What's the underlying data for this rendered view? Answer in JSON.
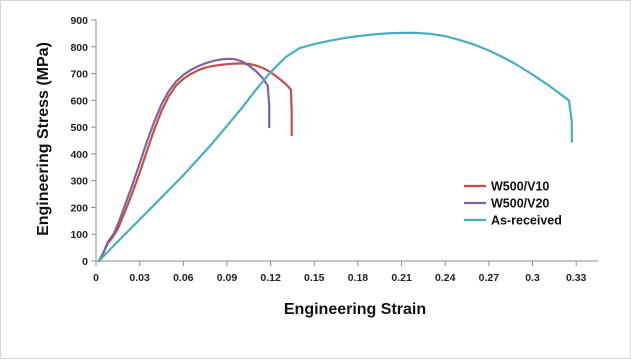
{
  "chart_data": {
    "type": "line",
    "title": "",
    "xlabel": "Engineering Strain",
    "ylabel": "Engineering Stress (MPa)",
    "xlim": [
      0,
      0.345
    ],
    "ylim": [
      0,
      900
    ],
    "x_ticks": [
      0,
      0.03,
      0.06,
      0.09,
      0.12,
      0.15,
      0.18,
      0.21,
      0.24,
      0.27,
      0.3,
      0.33
    ],
    "x_tick_labels": [
      "0",
      "0.03",
      "0.06",
      "0.09",
      "0.12",
      "0.15",
      "0.18",
      "0.21",
      "0.24",
      "0.27",
      "0.3",
      "0.33"
    ],
    "y_ticks": [
      0,
      100,
      200,
      300,
      400,
      500,
      600,
      700,
      800,
      900
    ],
    "y_tick_labels": [
      "0",
      "100",
      "200",
      "300",
      "400",
      "500",
      "600",
      "700",
      "800",
      "900"
    ],
    "grid": false,
    "legend_position": "right",
    "series": [
      {
        "name": "W500/V10",
        "color": "#c0504d",
        "x": [
          0.002,
          0.005,
          0.008,
          0.011,
          0.015,
          0.02,
          0.025,
          0.03,
          0.035,
          0.04,
          0.045,
          0.05,
          0.055,
          0.06,
          0.065,
          0.07,
          0.075,
          0.08,
          0.085,
          0.09,
          0.095,
          0.1,
          0.105,
          0.11,
          0.115,
          0.12,
          0.125,
          0.13,
          0.134,
          0.1345,
          0.1345
        ],
        "y": [
          0,
          30,
          65,
          85,
          120,
          185,
          255,
          330,
          410,
          490,
          560,
          615,
          655,
          680,
          698,
          712,
          722,
          728,
          732,
          735,
          737,
          738,
          736,
          730,
          720,
          705,
          685,
          663,
          640,
          550,
          470
        ]
      },
      {
        "name": "W500/V20",
        "color": "#8064a2",
        "x": [
          0.002,
          0.005,
          0.008,
          0.012,
          0.016,
          0.02,
          0.025,
          0.03,
          0.035,
          0.04,
          0.045,
          0.05,
          0.055,
          0.06,
          0.065,
          0.07,
          0.075,
          0.08,
          0.085,
          0.09,
          0.095,
          0.1,
          0.105,
          0.11,
          0.115,
          0.118,
          0.119,
          0.119
        ],
        "y": [
          0,
          30,
          70,
          100,
          150,
          210,
          285,
          365,
          445,
          520,
          585,
          635,
          670,
          695,
          713,
          727,
          738,
          746,
          752,
          755,
          754,
          746,
          730,
          708,
          680,
          655,
          580,
          500
        ]
      },
      {
        "name": "As-received",
        "color": "#4bacc6",
        "x": [
          0.002,
          0.01,
          0.02,
          0.03,
          0.04,
          0.05,
          0.06,
          0.07,
          0.08,
          0.09,
          0.1,
          0.11,
          0.12,
          0.13,
          0.14,
          0.15,
          0.16,
          0.17,
          0.18,
          0.19,
          0.2,
          0.21,
          0.22,
          0.23,
          0.24,
          0.25,
          0.26,
          0.27,
          0.28,
          0.29,
          0.3,
          0.31,
          0.32,
          0.325,
          0.327,
          0.327
        ],
        "y": [
          0,
          45,
          100,
          155,
          210,
          265,
          320,
          380,
          440,
          505,
          570,
          640,
          705,
          760,
          795,
          810,
          822,
          832,
          840,
          846,
          850,
          852,
          852,
          848,
          840,
          825,
          808,
          786,
          760,
          730,
          696,
          660,
          620,
          600,
          520,
          445
        ]
      }
    ]
  }
}
